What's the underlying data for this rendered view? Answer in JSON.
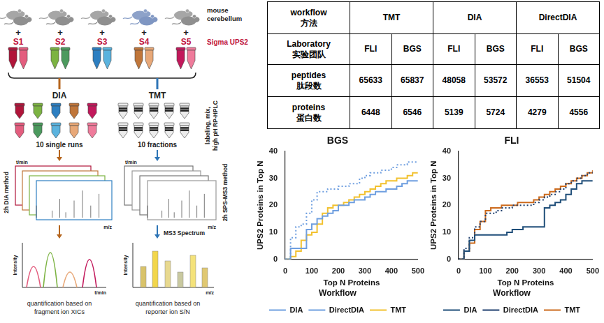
{
  "diagram": {
    "mouse_label": [
      "mouse",
      "cerebellum"
    ],
    "spike_label": "Sigma UPS2",
    "plus": "+",
    "samples": [
      {
        "label": "S1",
        "colors": [
          "#b0153a",
          "#e35d7e"
        ]
      },
      {
        "label": "S2",
        "colors": [
          "#7cb342",
          "#4c9a5e"
        ]
      },
      {
        "label": "S3",
        "colors": [
          "#2d7fc1",
          "#5bb3de"
        ]
      },
      {
        "label": "S4",
        "colors": [
          "#c0763a",
          "#e8a878"
        ]
      },
      {
        "label": "S5",
        "colors": [
          "#c2185b",
          "#ef7b9b"
        ]
      }
    ],
    "branches": [
      {
        "label": "DIA",
        "color": "#b5651d",
        "tubes_caption": "10 single runs",
        "method": "2h DIA method",
        "quantification": [
          "quantification based on",
          "fragment ion XICs"
        ]
      },
      {
        "label": "TMT",
        "color": "#2e75b6",
        "prep": [
          "labeling, mix,",
          "high pH RP-HPLC"
        ],
        "tubes_caption": "10 fractions",
        "method": "2h SPS-MS3 method",
        "spectrum": "MS3 Spectrum",
        "quantification": [
          "quantification based on",
          "reporter ion S/N"
        ]
      }
    ],
    "axis_labels": {
      "time": "t/min",
      "mz": "m/z",
      "intensity": "Intensity"
    }
  },
  "table": {
    "header": {
      "label": [
        "workflow",
        "方法"
      ],
      "groups": [
        "TMT",
        "DIA",
        "DirectDIA"
      ]
    },
    "labs_label": [
      "Laboratory",
      "实验团队"
    ],
    "labs": [
      "FLI",
      "BGS",
      "FLI",
      "BGS",
      "FLI",
      "BGS"
    ],
    "rows": [
      {
        "label": [
          "peptides",
          "肽段数"
        ],
        "values": [
          65633,
          65837,
          48058,
          53572,
          36553,
          51504
        ]
      },
      {
        "label": [
          "proteins",
          "蛋白数"
        ],
        "values": [
          6448,
          6546,
          5139,
          5724,
          4279,
          4556
        ]
      }
    ]
  },
  "chart_data": [
    {
      "type": "step",
      "title": "BGS",
      "x_label": "Top N Proteins",
      "y_label": "UPS2 Proteins in Top N",
      "x": [
        0,
        20,
        40,
        60,
        80,
        100,
        120,
        140,
        160,
        180,
        200,
        220,
        240,
        260,
        280,
        300,
        320,
        340,
        360,
        380,
        400,
        420,
        440,
        460,
        480,
        500
      ],
      "series": [
        {
          "name": "DIA",
          "color": "#6f9fe0",
          "line_style": "solid",
          "values": [
            0,
            4,
            4,
            4,
            11,
            13,
            15,
            16,
            17,
            18,
            20,
            20,
            21,
            22,
            22,
            23,
            24,
            25,
            25,
            26,
            26,
            27,
            28,
            29,
            29,
            29
          ]
        },
        {
          "name": "DirectDIA",
          "color": "#6f9fe0",
          "line_style": "dotted",
          "values": [
            0,
            8,
            12,
            13,
            17,
            22,
            25,
            25,
            26,
            26,
            27,
            27,
            28,
            28,
            30,
            31,
            32,
            32,
            33,
            33,
            34,
            35,
            35,
            36,
            36,
            36
          ]
        },
        {
          "name": "TMT",
          "color": "#f2c12e",
          "line_style": "solid",
          "values": [
            0,
            1,
            3,
            7,
            9,
            10,
            13,
            17,
            19,
            20,
            20,
            21,
            22,
            23,
            24,
            25,
            26,
            27,
            28,
            29,
            29,
            30,
            30,
            31,
            32,
            32
          ]
        }
      ],
      "xlim": [
        0,
        500
      ],
      "xticks": [
        0,
        100,
        200,
        300,
        400,
        500
      ],
      "ylim": [
        0,
        40
      ],
      "yticks": [
        0,
        10,
        20,
        30,
        40
      ],
      "grid": false,
      "legend": "bottom",
      "legend_title": "Workflow"
    },
    {
      "type": "step",
      "title": "FLI",
      "x_label": "Top N Proteins",
      "y_label": "UPS2 Proteins in Top N",
      "x": [
        0,
        20,
        40,
        60,
        80,
        100,
        120,
        140,
        160,
        180,
        200,
        220,
        240,
        260,
        280,
        300,
        320,
        340,
        360,
        380,
        400,
        420,
        440,
        460,
        480,
        500
      ],
      "series": [
        {
          "name": "DIA",
          "color": "#1f4e79",
          "line_style": "solid",
          "values": [
            0,
            3,
            7,
            9,
            9,
            9,
            9,
            9,
            9,
            10,
            11,
            11,
            12,
            12,
            12,
            12,
            19,
            20,
            21,
            22,
            24,
            26,
            28,
            29,
            29,
            29
          ]
        },
        {
          "name": "DirectDIA",
          "color": "#1f3f6e",
          "line_style": "dotted",
          "values": [
            0,
            4,
            8,
            12,
            14,
            17,
            17,
            18,
            19,
            19,
            20,
            20,
            20,
            20,
            21,
            22,
            23,
            24,
            25,
            26,
            28,
            29,
            30,
            31,
            32,
            33
          ]
        },
        {
          "name": "TMT",
          "color": "#cc6a1c",
          "line_style": "solid",
          "values": [
            0,
            3,
            6,
            11,
            14,
            18,
            19,
            19,
            20,
            20,
            20,
            21,
            21,
            21,
            22,
            23,
            24,
            25,
            26,
            27,
            28,
            29,
            30,
            31,
            32,
            33
          ]
        }
      ],
      "xlim": [
        0,
        500
      ],
      "xticks": [
        0,
        100,
        200,
        300,
        400,
        500
      ],
      "ylim": [
        0,
        40
      ],
      "yticks": [
        0,
        10,
        20,
        30,
        40
      ],
      "grid": false,
      "legend": "bottom",
      "legend_title": "Workflow"
    }
  ]
}
